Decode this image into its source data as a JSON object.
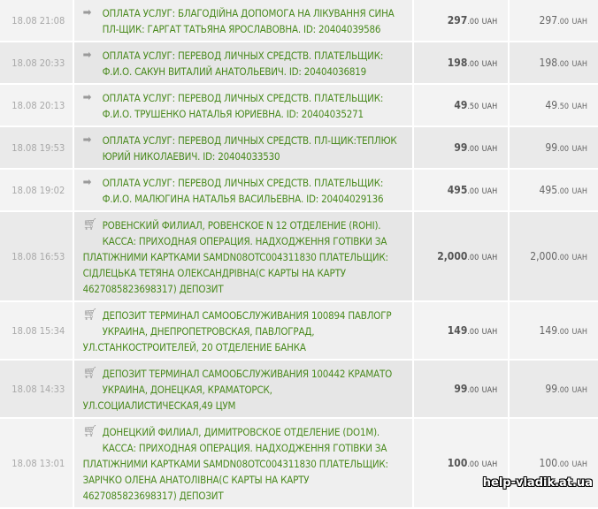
{
  "currency": "UAH",
  "rows": [
    {
      "date": "18.08 21:08",
      "icon": "arrow-right-icon",
      "description": "ОПЛАТА УСЛУГ: БЛАГОДІЙНА ДОПОМОГА НА ЛІКУВАННЯ СИНА ПЛ-ЩИК: ГАРГАТ ТАТЬЯНА ЯРОСЛАВОВНА. ID: 20404039586",
      "amount_int": "297",
      "amount_dec": ".00",
      "balance_int": "297",
      "balance_dec": ".00"
    },
    {
      "date": "18.08 20:33",
      "icon": "arrow-right-icon",
      "description": "ОПЛАТА УСЛУГ: ПЕРЕВОД ЛИЧНЫХ СРЕДСТВ. ПЛАТЕЛЬЩИК: Ф.И.О. САКУН ВИТАЛИЙ АНАТОЛЬЕВИЧ. ID: 20404036819",
      "amount_int": "198",
      "amount_dec": ".00",
      "balance_int": "198",
      "balance_dec": ".00"
    },
    {
      "date": "18.08 20:13",
      "icon": "arrow-right-icon",
      "description": "ОПЛАТА УСЛУГ: ПЕРЕВОД ЛИЧНЫХ СРЕДСТВ. ПЛАТЕЛЬЩИК: Ф.И.О. ТРУШЕНКО НАТАЛЬЯ ЮРИЕВНА. ID: 20404035271",
      "amount_int": "49",
      "amount_dec": ".50",
      "balance_int": "49",
      "balance_dec": ".50"
    },
    {
      "date": "18.08 19:53",
      "icon": "arrow-right-icon",
      "description": "ОПЛАТА УСЛУГ: ПЕРЕВОД ЛИЧНЫХ СРЕДСТВ. ПЛ-ЩИК:ТЕПЛЮК ЮРИЙ НИКОЛАЕВИЧ. ID: 20404033530",
      "amount_int": "99",
      "amount_dec": ".00",
      "balance_int": "99",
      "balance_dec": ".00"
    },
    {
      "date": "18.08 19:02",
      "icon": "arrow-right-icon",
      "description": "ОПЛАТА УСЛУГ: ПЕРЕВОД ЛИЧНЫХ СРЕДСТВ. ПЛАТЕЛЬЩИК: Ф.И.О. МАЛЮГИНА НАТАЛЬЯ ВАСИЛЬЕВНА. ID: 20404029136",
      "amount_int": "495",
      "amount_dec": ".00",
      "balance_int": "495",
      "balance_dec": ".00"
    },
    {
      "date": "18.08 16:53",
      "icon": "cart-icon",
      "description": "РОВЕНСКИЙ ФИЛИАЛ, РОВЕНСКОЕ N 12 ОТДЕЛЕНИЕ (ROHI). КАССА: ПРИХОДНАЯ ОПЕРАЦИЯ. НАДХОДЖЕННЯ ГОТІВКИ ЗА ПЛАТІЖНИМИ КАРТКАМИ SAMDN08OTC004311830 ПЛАТЕЛЬЩИК: СІДЛЕЦЬКА ТЕТЯНА ОЛЕКСАНДРІВНА(С КАРТЫ НА КАРТУ 4627085823698317) ДЕПОЗИТ",
      "amount_int": "2,000",
      "amount_dec": ".00",
      "balance_int": "2,000",
      "balance_dec": ".00"
    },
    {
      "date": "18.08 15:34",
      "icon": "cart-icon",
      "description": "ДЕПОЗИТ ТЕРМИНАЛ САМООБСЛУЖИВАНИЯ 100894 ПАВЛОГР УКРАИНА, ДНЕПРОПЕТРОВСКАЯ, ПАВЛОГРАД, УЛ.СТАНКОСТРОИТЕЛЕЙ, 20 ОТДЕЛЕНИЕ БАНКА",
      "amount_int": "149",
      "amount_dec": ".00",
      "balance_int": "149",
      "balance_dec": ".00"
    },
    {
      "date": "18.08 14:33",
      "icon": "cart-icon",
      "description": "ДЕПОЗИТ ТЕРМИНАЛ САМООБСЛУЖИВАНИЯ 100442 КРАМАТО УКРАИНА, ДОНЕЦКАЯ, КРАМАТОРСК, УЛ.СОЦИАЛИСТИЧЕСКАЯ,49 ЦУМ",
      "amount_int": "99",
      "amount_dec": ".00",
      "balance_int": "99",
      "balance_dec": ".00"
    },
    {
      "date": "18.08 13:01",
      "icon": "cart-icon",
      "description": "ДОНЕЦКИЙ ФИЛИАЛ, ДИМИТРОВСКОЕ ОТДЕЛЕНИЕ (DO1M). КАССА: ПРИХОДНАЯ ОПЕРАЦИЯ. НАДХОДЖЕННЯ ГОТІВКИ ЗА ПЛАТІЖНИМИ КАРТКАМИ SAMDN08OTC004311830 ПЛАТЕЛЬЩИК: ЗАРІЧКО ОЛЕНА АНАТОЛІВНА(С КАРТЫ НА КАРТУ 4627085823698317) ДЕПОЗИТ",
      "amount_int": "100",
      "amount_dec": ".00",
      "balance_int": "100",
      "balance_dec": ".00"
    }
  ],
  "watermark": "help-vladik.at.ua"
}
